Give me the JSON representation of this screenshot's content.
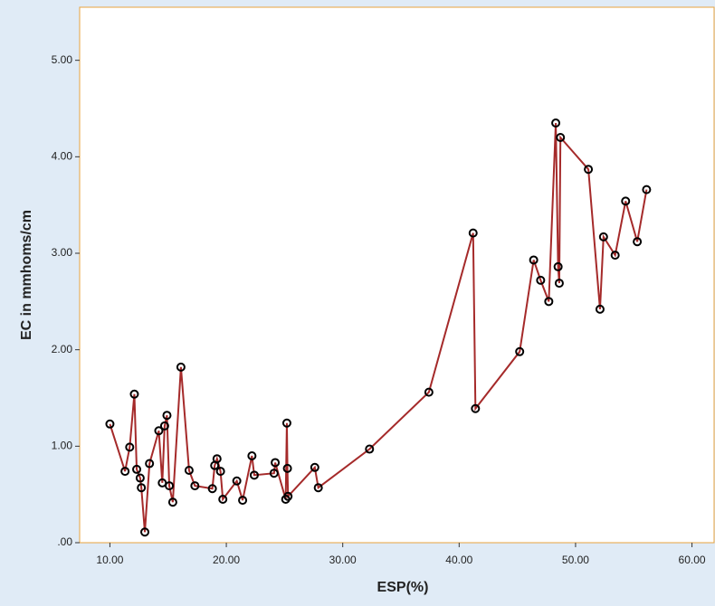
{
  "chart_data": {
    "type": "line",
    "x_label": "ESP(%)",
    "y_label": "EC in mmhoms/cm",
    "x": [
      10.0,
      11.3,
      11.7,
      12.1,
      12.3,
      12.6,
      12.7,
      13.0,
      13.4,
      14.2,
      14.5,
      14.7,
      14.9,
      15.1,
      15.4,
      16.1,
      16.8,
      17.3,
      18.8,
      19.0,
      19.2,
      19.5,
      19.7,
      20.9,
      21.4,
      22.2,
      22.4,
      24.1,
      24.2,
      25.1,
      25.2,
      25.25,
      25.3,
      27.6,
      27.9,
      32.3,
      37.4,
      41.2,
      41.4,
      45.2,
      46.4,
      47.0,
      47.7,
      48.3,
      48.5,
      48.6,
      48.7,
      51.1,
      52.1,
      52.4,
      53.4,
      54.3,
      55.3,
      56.1
    ],
    "series": [
      {
        "color": "#a52a2a",
        "marker_color": "#000000",
        "values": [
          1.23,
          0.74,
          0.99,
          1.54,
          0.76,
          0.67,
          0.57,
          0.11,
          0.82,
          1.16,
          0.62,
          1.21,
          1.32,
          0.59,
          0.42,
          1.82,
          0.75,
          0.59,
          0.56,
          0.8,
          0.87,
          0.74,
          0.45,
          0.64,
          0.44,
          0.9,
          0.7,
          0.72,
          0.83,
          0.45,
          1.24,
          0.77,
          0.48,
          0.78,
          0.57,
          0.97,
          1.56,
          3.21,
          1.39,
          1.98,
          2.93,
          2.72,
          2.5,
          4.35,
          2.86,
          2.69,
          4.2,
          3.87,
          2.42,
          3.17,
          2.98,
          3.54,
          3.12,
          3.66
        ]
      }
    ],
    "xlim": [
      7.4,
      61.9
    ],
    "ylim": [
      0,
      5.55
    ],
    "xticks": [
      {
        "value": 10,
        "label": "10.00"
      },
      {
        "value": 20,
        "label": "20.00"
      },
      {
        "value": 30,
        "label": "30.00"
      },
      {
        "value": 40,
        "label": "40.00"
      },
      {
        "value": 50,
        "label": "50.00"
      },
      {
        "value": 60,
        "label": "60.00"
      }
    ],
    "yticks": [
      {
        "value": 0,
        "label": ".00"
      },
      {
        "value": 1,
        "label": "1.00"
      },
      {
        "value": 2,
        "label": "2.00"
      },
      {
        "value": 3,
        "label": "3.00"
      },
      {
        "value": 4,
        "label": "4.00"
      },
      {
        "value": 5,
        "label": "5.00"
      }
    ],
    "grid": false
  }
}
